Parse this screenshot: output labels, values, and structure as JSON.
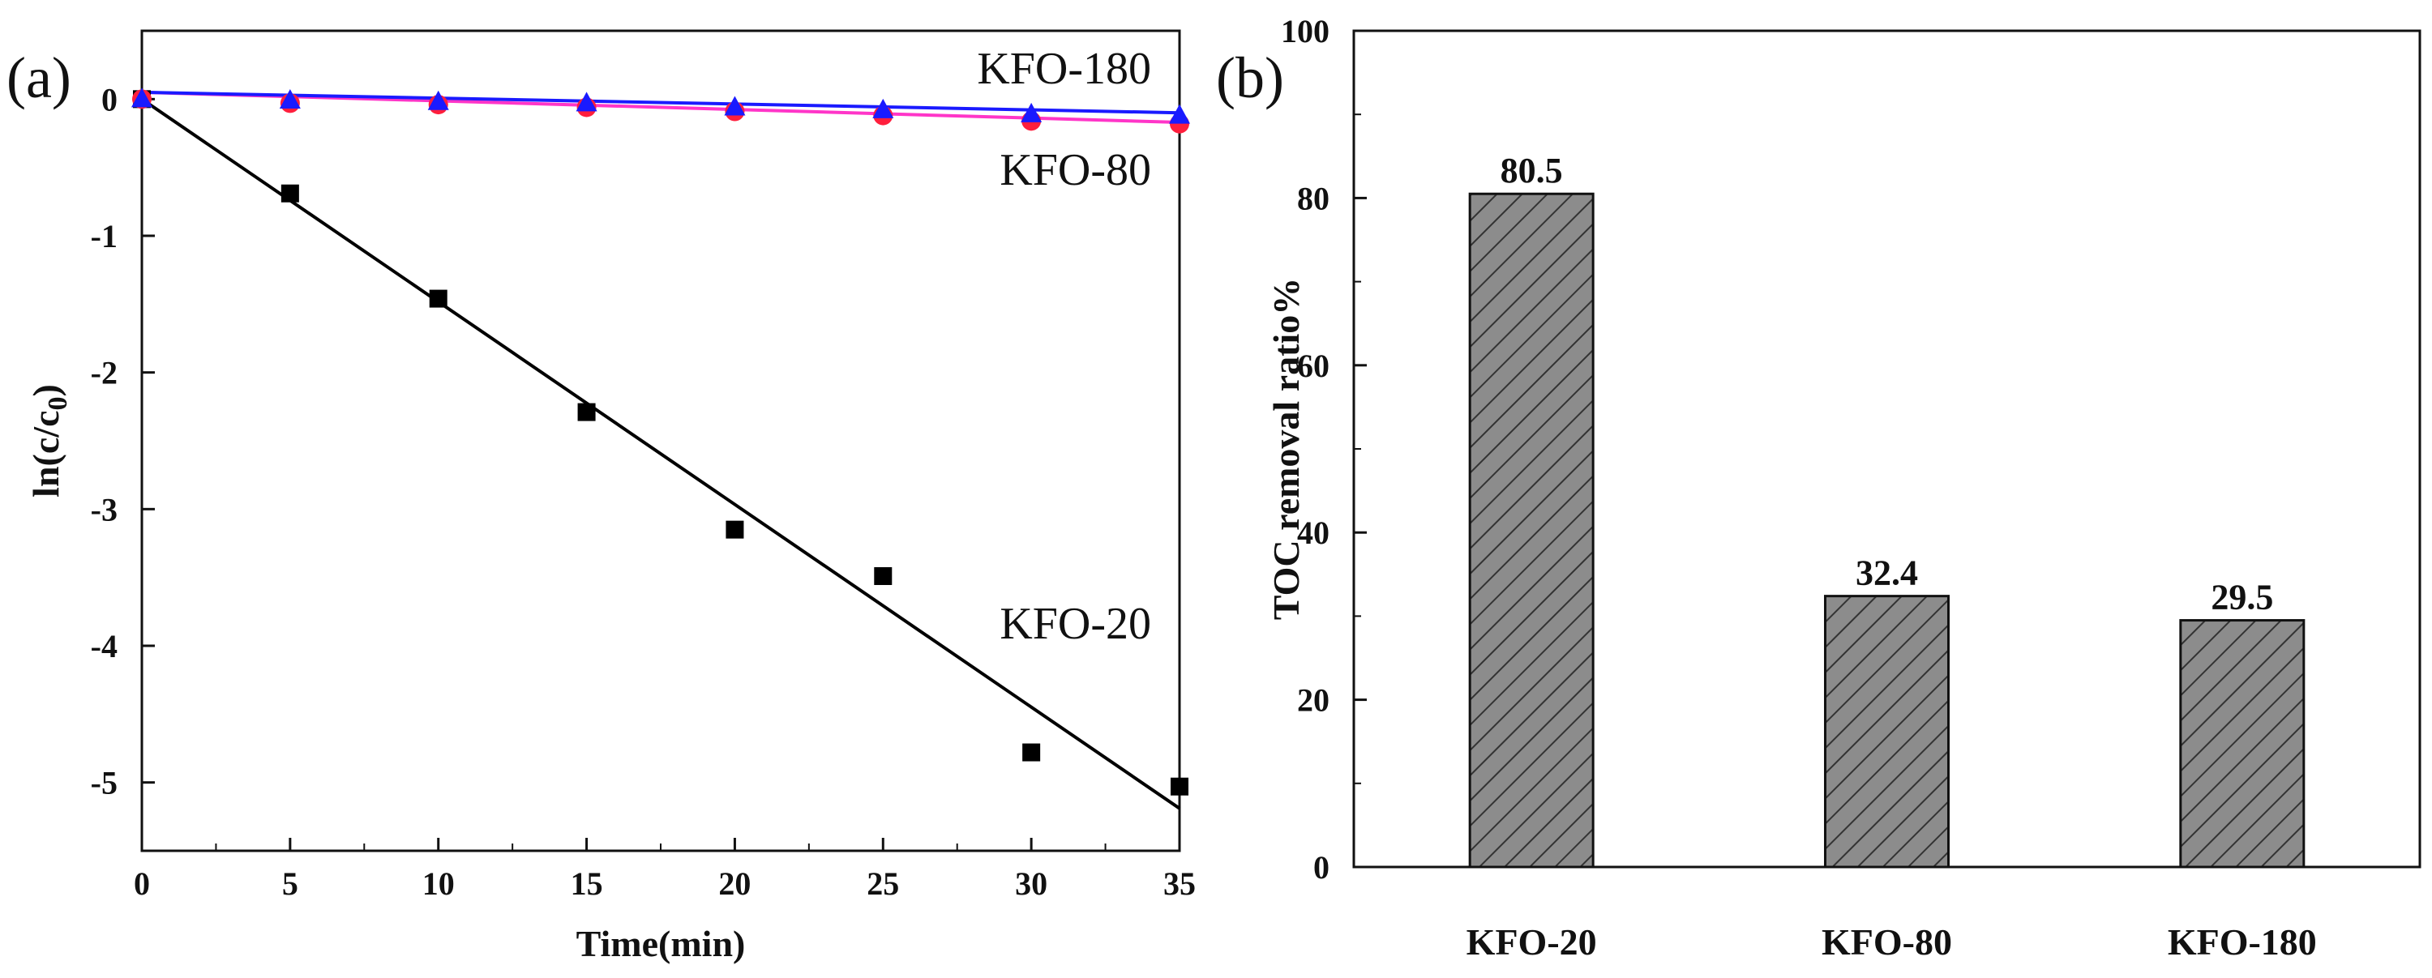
{
  "chart_data": [
    {
      "panel_label": "(a)",
      "type": "scatter",
      "xlabel": "Time(min)",
      "ylabel": "ln(c/c0)",
      "ylabel_main": "ln(c/c",
      "ylabel_sub": "0",
      "ylabel_close": ")",
      "xlim": [
        0,
        35
      ],
      "ylim": [
        -5.5,
        0.5
      ],
      "xticks": [
        0,
        5,
        10,
        15,
        20,
        25,
        30,
        35
      ],
      "yticks": [
        0,
        -1,
        -2,
        -3,
        -4,
        -5
      ],
      "series": [
        {
          "name": "KFO-20",
          "marker": "square",
          "color": "#000000",
          "line_color": "#000000",
          "x": [
            0,
            5,
            10,
            15,
            20,
            25,
            30,
            35
          ],
          "y": [
            0,
            -0.69,
            -1.46,
            -2.29,
            -3.15,
            -3.49,
            -4.78,
            -5.03
          ],
          "fit": {
            "x": [
              0,
              35
            ],
            "y": [
              0,
              -5.19
            ]
          }
        },
        {
          "name": "KFO-80",
          "marker": "circle",
          "color": "#ff1f3d",
          "line_color": "#ff35c8",
          "x": [
            0,
            5,
            10,
            15,
            20,
            25,
            30,
            35
          ],
          "y": [
            0,
            -0.03,
            -0.04,
            -0.06,
            -0.09,
            -0.12,
            -0.16,
            -0.18
          ],
          "fit": {
            "x": [
              0,
              35
            ],
            "y": [
              0.05,
              -0.17
            ]
          }
        },
        {
          "name": "KFO-180",
          "marker": "triangle",
          "color": "#1a1aff",
          "line_color": "#1a1aff",
          "x": [
            0,
            5,
            10,
            15,
            20,
            25,
            30,
            35
          ],
          "y": [
            0,
            -0.01,
            -0.02,
            -0.03,
            -0.06,
            -0.08,
            -0.11,
            -0.12
          ],
          "fit": {
            "x": [
              0,
              35
            ],
            "y": [
              0.05,
              -0.1
            ]
          }
        }
      ]
    },
    {
      "panel_label": "(b)",
      "type": "bar",
      "ylabel": "TOC removal ratio%",
      "categories": [
        "KFO-20",
        "KFO-80",
        "KFO-180"
      ],
      "values": [
        80.5,
        32.4,
        29.5
      ],
      "value_labels": [
        "80.5",
        "32.4",
        "29.5"
      ],
      "ylim": [
        0,
        100
      ],
      "yticks": [
        0,
        20,
        40,
        60,
        80,
        100
      ],
      "bar_color": "#8c8c8c",
      "hatch": "diagonal"
    }
  ]
}
